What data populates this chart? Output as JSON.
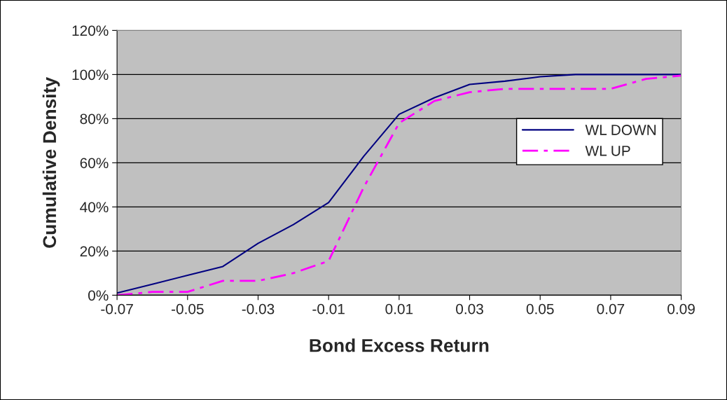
{
  "chart_data": {
    "type": "line",
    "xlabel": "Bond Excess Return",
    "ylabel": "Cumulative Density",
    "x": [
      -0.07,
      -0.06,
      -0.05,
      -0.04,
      -0.03,
      -0.02,
      -0.01,
      0.0,
      0.01,
      0.02,
      0.03,
      0.04,
      0.05,
      0.06,
      0.07,
      0.08,
      0.09
    ],
    "series": [
      {
        "name": "WL DOWN",
        "color": "#000080",
        "line_style": "solid",
        "values": [
          1,
          5,
          9,
          13,
          23.5,
          32,
          42,
          63,
          82,
          89.5,
          95.5,
          97,
          99,
          100,
          100,
          100,
          100
        ]
      },
      {
        "name": "WL UP",
        "color": "#ff00ff",
        "line_style": "dashdot",
        "values": [
          0,
          1.5,
          1.5,
          6.5,
          6.5,
          10,
          15.5,
          49,
          78,
          88,
          92,
          93.5,
          93.5,
          93.5,
          93.5,
          98,
          99.5
        ]
      }
    ],
    "xlim": [
      -0.07,
      0.09
    ],
    "xticks": [
      -0.07,
      -0.05,
      -0.03,
      -0.01,
      0.01,
      0.03,
      0.05,
      0.07,
      0.09
    ],
    "ylim": [
      0,
      120
    ],
    "yticks": [
      {
        "value": 0,
        "label": "0%"
      },
      {
        "value": 20,
        "label": "20%"
      },
      {
        "value": 40,
        "label": "40%"
      },
      {
        "value": 60,
        "label": "60%"
      },
      {
        "value": 80,
        "label": "80%"
      },
      {
        "value": 100,
        "label": "100%"
      },
      {
        "value": 120,
        "label": "120%"
      }
    ],
    "grid": "y",
    "legend": "right",
    "marker": "none"
  }
}
